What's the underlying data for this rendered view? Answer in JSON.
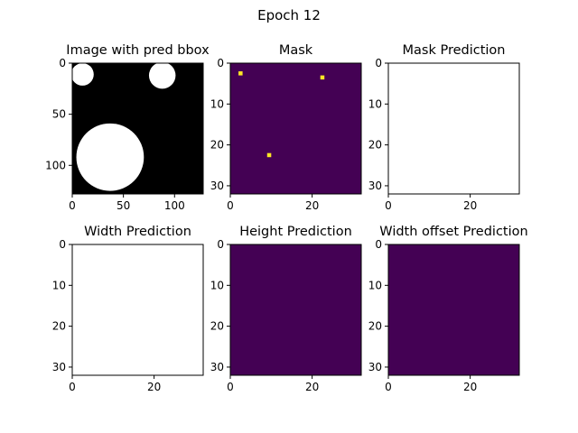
{
  "figure": {
    "suptitle": "Epoch 12"
  },
  "colors": {
    "viridis_low": "#440154",
    "viridis_high": "#fde725",
    "binary_fg": "#ffffff",
    "binary_bg": "#000000",
    "blank": "#ffffff"
  },
  "chart_data": [
    {
      "type": "heatmap",
      "title": "Image with pred bbox",
      "colormap": "gray",
      "image_size": [
        128,
        128
      ],
      "xticks": [
        0,
        50,
        100
      ],
      "yticks": [
        0,
        50,
        100
      ],
      "xlim": [
        0,
        128
      ],
      "ylim": [
        128,
        0
      ],
      "white_circles": [
        {
          "cx": 10,
          "cy": 11,
          "r": 11
        },
        {
          "cx": 88,
          "cy": 12,
          "r": 13
        },
        {
          "cx": 37,
          "cy": 92,
          "r": 33
        }
      ]
    },
    {
      "type": "heatmap",
      "title": "Mask",
      "colormap": "viridis",
      "grid_size": [
        32,
        32
      ],
      "xticks": [
        0,
        20
      ],
      "yticks": [
        0,
        10,
        20,
        30
      ],
      "xlim": [
        0,
        32
      ],
      "ylim": [
        32,
        0
      ],
      "high_cells": [
        {
          "col": 2,
          "row": 2
        },
        {
          "col": 22,
          "row": 3
        },
        {
          "col": 9,
          "row": 22
        }
      ]
    },
    {
      "type": "heatmap",
      "title": "Mask Prediction",
      "colormap": "blank",
      "grid_size": [
        32,
        32
      ],
      "xticks": [
        0,
        20
      ],
      "yticks": [
        0,
        10,
        20,
        30
      ],
      "xlim": [
        0,
        32
      ],
      "ylim": [
        32,
        0
      ]
    },
    {
      "type": "heatmap",
      "title": "Width Prediction",
      "colormap": "blank",
      "grid_size": [
        32,
        32
      ],
      "xticks": [
        0,
        20
      ],
      "yticks": [
        0,
        10,
        20,
        30
      ],
      "xlim": [
        0,
        32
      ],
      "ylim": [
        32,
        0
      ]
    },
    {
      "type": "heatmap",
      "title": "Height Prediction",
      "colormap": "viridis",
      "grid_size": [
        32,
        32
      ],
      "xticks": [
        0,
        20
      ],
      "yticks": [
        0,
        10,
        20,
        30
      ],
      "xlim": [
        0,
        32
      ],
      "ylim": [
        32,
        0
      ],
      "uniform": true
    },
    {
      "type": "heatmap",
      "title": "Width offset Prediction",
      "colormap": "viridis",
      "grid_size": [
        32,
        32
      ],
      "xticks": [
        0,
        20
      ],
      "yticks": [
        0,
        10,
        20,
        30
      ],
      "xlim": [
        0,
        32
      ],
      "ylim": [
        32,
        0
      ],
      "uniform": true
    }
  ]
}
